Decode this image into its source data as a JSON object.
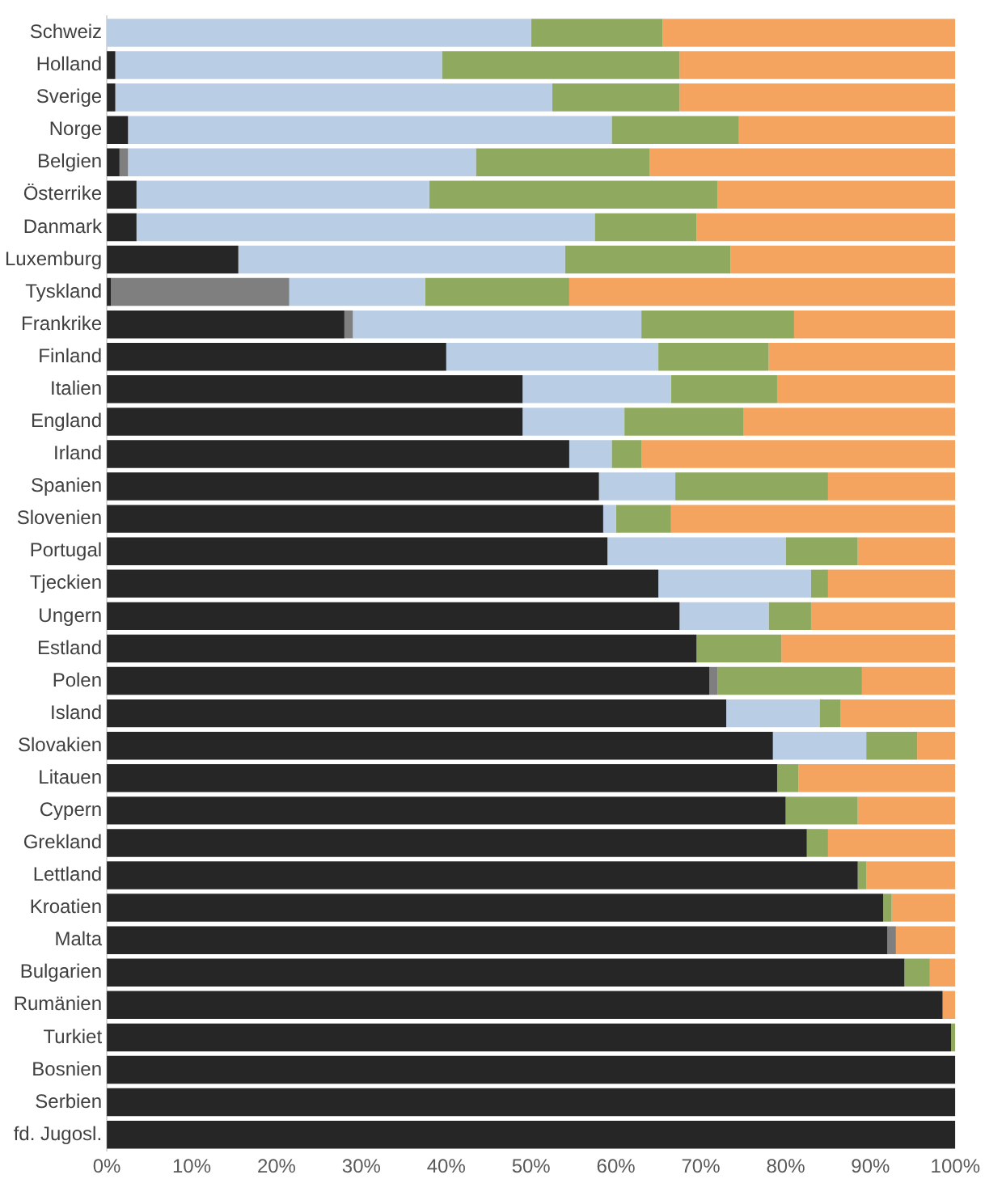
{
  "chart_data": {
    "type": "bar",
    "orientation": "horizontal",
    "stacked": true,
    "categories": [
      "Schweiz",
      "Holland",
      "Sverige",
      "Norge",
      "Belgien",
      "Österrike",
      "Danmark",
      "Luxemburg",
      "Tyskland",
      "Frankrike",
      "Finland",
      "Italien",
      "England",
      "Irland",
      "Spanien",
      "Slovenien",
      "Portugal",
      "Tjeckien",
      "Ungern",
      "Estland",
      "Polen",
      "Island",
      "Slovakien",
      "Litauen",
      "Cypern",
      "Grekland",
      "Lettland",
      "Kroatien",
      "Malta",
      "Bulgarien",
      "Rumänien",
      "Turkiet",
      "Bosnien",
      "Serbien",
      "fd. Jugosl."
    ],
    "series": [
      {
        "color": "#262626",
        "values": [
          0,
          1,
          1,
          2.5,
          1.5,
          3.5,
          3.5,
          15.5,
          0.5,
          28,
          40,
          49,
          49,
          54.5,
          58,
          58.5,
          59,
          65,
          67.5,
          69.5,
          71,
          73,
          78.5,
          79,
          80,
          82.5,
          88.5,
          91.5,
          92,
          94,
          98.5,
          99.5,
          100,
          100,
          100
        ]
      },
      {
        "color": "#7f7f7f",
        "values": [
          0,
          0,
          0,
          0,
          1,
          0,
          0,
          0,
          21,
          1,
          0,
          0,
          0,
          0,
          0,
          0,
          0,
          0,
          0,
          0,
          1,
          0,
          0,
          0,
          0,
          0,
          0,
          0,
          1,
          0,
          0,
          0,
          0,
          0,
          0
        ]
      },
      {
        "color": "#b9cde5",
        "values": [
          50,
          38.5,
          51.5,
          57,
          41,
          34.5,
          54,
          38.5,
          16,
          34,
          25,
          17.5,
          12,
          5,
          9,
          1.5,
          21,
          18,
          10.5,
          0,
          0,
          11,
          11,
          0,
          0,
          0,
          0,
          0,
          0,
          0,
          0,
          0,
          0,
          0,
          0
        ]
      },
      {
        "color": "#8faa5e",
        "values": [
          15.5,
          28,
          15,
          15,
          20.5,
          34,
          12,
          19.5,
          17,
          18,
          13,
          12.5,
          14,
          3.5,
          18,
          6.5,
          8.5,
          2,
          5,
          10,
          17,
          2.5,
          6,
          2.5,
          8.5,
          2.5,
          1,
          1,
          0,
          3,
          0,
          0.5,
          0,
          0,
          0
        ]
      },
      {
        "color": "#f4a45e",
        "values": [
          34.5,
          32.5,
          32.5,
          25.5,
          36,
          28,
          30.5,
          26.5,
          45.5,
          19,
          22,
          21,
          25,
          37,
          15,
          33.5,
          11.5,
          15,
          17,
          20.5,
          11,
          13.5,
          4.5,
          18.5,
          11.5,
          15,
          10.5,
          7.5,
          7,
          3,
          1.5,
          0,
          0,
          0,
          0
        ]
      }
    ],
    "xlim": [
      0,
      100
    ],
    "xticks": [
      {
        "value": 0,
        "label": "0%"
      },
      {
        "value": 10,
        "label": "10%"
      },
      {
        "value": 20,
        "label": "20%"
      },
      {
        "value": 30,
        "label": "30%"
      },
      {
        "value": 40,
        "label": "40%"
      },
      {
        "value": 50,
        "label": "50%"
      },
      {
        "value": 60,
        "label": "60%"
      },
      {
        "value": 70,
        "label": "70%"
      },
      {
        "value": 80,
        "label": "80%"
      },
      {
        "value": 90,
        "label": "90%"
      },
      {
        "value": 100,
        "label": "100%"
      }
    ],
    "grid": false,
    "legend": false
  }
}
